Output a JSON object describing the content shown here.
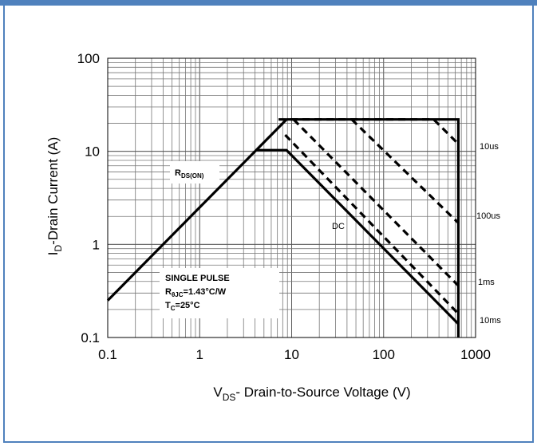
{
  "chart_data": {
    "type": "line",
    "x_scale": "log",
    "y_scale": "log",
    "xlim": [
      0.1,
      1000
    ],
    "ylim": [
      0.1,
      100
    ],
    "grid": true,
    "x_ticks": [
      "0.1",
      "1",
      "10",
      "100",
      "1000"
    ],
    "y_ticks": [
      "100",
      "10",
      "1",
      "0.1"
    ],
    "xlabel": {
      "main": "V",
      "sub": "DS",
      "rest": "- Drain-to-Source Voltage (V)"
    },
    "ylabel": {
      "main": "I",
      "sub": "D",
      "rest": "-Drain Current (A)"
    },
    "rds_label": {
      "main": "R",
      "sub": "DS(ON)"
    },
    "conditions": {
      "line1": "SINGLE PULSE",
      "line2_main": "R",
      "line2_sub": "θJC",
      "line2_rest": "=1.43°C/W",
      "line3_main": "T",
      "line3_sub": "C",
      "line3_rest": "=25°C"
    },
    "series": [
      {
        "name": "10us",
        "style": "dashed",
        "points": [
          [
            7.2,
            22
          ],
          [
            350,
            22
          ],
          [
            650,
            12
          ]
        ]
      },
      {
        "name": "100us",
        "style": "dashed",
        "points": [
          [
            45,
            22
          ],
          [
            650,
            1.7
          ]
        ]
      },
      {
        "name": "1ms",
        "style": "dashed",
        "points": [
          [
            10.5,
            22
          ],
          [
            650,
            0.36
          ]
        ]
      },
      {
        "name": "10ms",
        "style": "dashed",
        "points": [
          [
            8.5,
            15
          ],
          [
            650,
            0.18
          ]
        ]
      },
      {
        "name": "DC",
        "style": "solid",
        "points": [
          [
            4.2,
            10.3
          ],
          [
            8.8,
            10.3
          ],
          [
            650,
            0.14
          ]
        ]
      },
      {
        "name": "",
        "style": "solid",
        "points": [
          [
            0.1,
            0.25
          ],
          [
            8.8,
            22
          ],
          [
            650,
            22
          ],
          [
            650,
            0.1
          ]
        ]
      }
    ]
  }
}
